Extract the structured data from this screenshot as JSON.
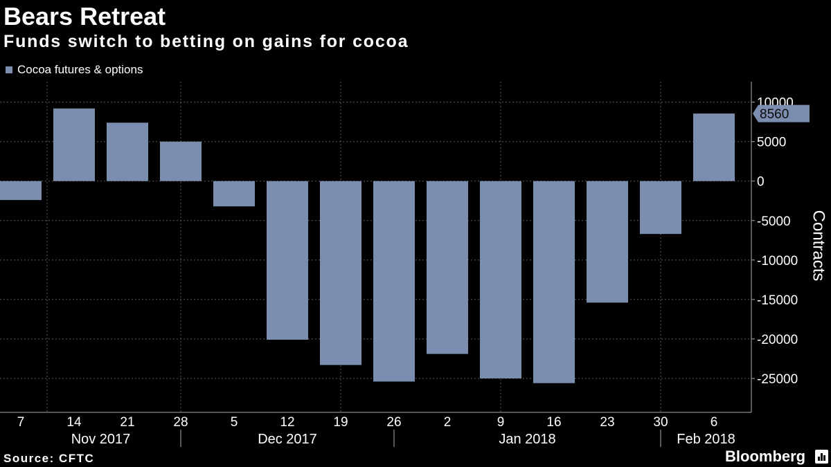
{
  "colors": {
    "background": "#000000",
    "text": "#ffffff",
    "grid": "#5c5c5c",
    "axis": "#b0b0b0"
  },
  "footer": {
    "source": "Source: CFTC",
    "brand": "Bloomberg",
    "brand_icon": "chart-icon"
  },
  "chart_data": {
    "type": "bar",
    "title": "Bears Retreat",
    "subtitle": "Funds switch to betting on gains for cocoa",
    "legend": [
      {
        "label": "Cocoa futures & options",
        "color": "#7b8eb0"
      }
    ],
    "legend_position": "top-left",
    "categories": [
      "7",
      "14",
      "21",
      "28",
      "5",
      "12",
      "19",
      "26",
      "2",
      "9",
      "16",
      "23",
      "30",
      "6"
    ],
    "x_groups": [
      {
        "label": "Nov 2017",
        "from": 0,
        "to": 3
      },
      {
        "label": "Dec 2017",
        "from": 4,
        "to": 7
      },
      {
        "label": "Jan 2018",
        "from": 8,
        "to": 12
      },
      {
        "label": "Feb 2018",
        "from": 13,
        "to": 13
      }
    ],
    "values": [
      -2400,
      9200,
      7400,
      5000,
      -3200,
      -20100,
      -23300,
      -25400,
      -21900,
      -25000,
      -25600,
      -15400,
      -6700,
      8560
    ],
    "xlabel": "",
    "ylabel": "Contracts",
    "yticks": [
      10000,
      5000,
      0,
      -5000,
      -10000,
      -15000,
      -20000,
      -25000
    ],
    "ylim": [
      -29300,
      12600
    ],
    "grid": true,
    "callout": {
      "index": 13,
      "value": 8560
    }
  }
}
